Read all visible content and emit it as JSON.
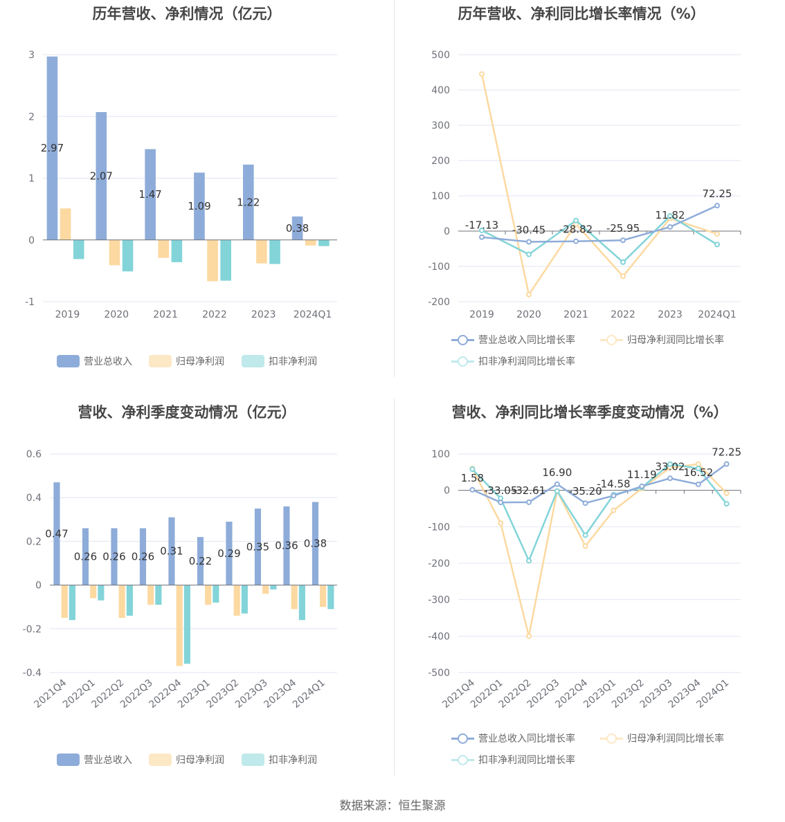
{
  "source": "数据来源：恒生聚源",
  "colors": {
    "revenue": "#8eacd9",
    "net": "#fcd9a1",
    "deducted": "#82d4d8",
    "grid": "#e0e6f1",
    "axis": "#6e7079",
    "label": "#333333"
  },
  "chart_data": [
    {
      "id": "annual-amount",
      "type": "bar",
      "title": "历年营收、净利情况（亿元）",
      "categories": [
        "2019",
        "2020",
        "2021",
        "2022",
        "2023",
        "2024Q1"
      ],
      "ylim": [
        -1,
        3
      ],
      "yticks": [
        -1,
        0,
        1,
        2,
        3
      ],
      "ytick_labels": [
        "-1",
        "0",
        "1",
        "2",
        "3"
      ],
      "series": [
        {
          "name": "营业总收入",
          "values": [
            2.97,
            2.07,
            1.47,
            1.09,
            1.22,
            0.38
          ],
          "labels": [
            "2.97",
            "2.07",
            "1.47",
            "1.09",
            "1.22",
            "0.38"
          ]
        },
        {
          "name": "归母净利润",
          "values": [
            0.51,
            -0.41,
            -0.29,
            -0.67,
            -0.38,
            -0.09
          ]
        },
        {
          "name": "扣非净利润",
          "values": [
            -0.31,
            -0.51,
            -0.36,
            -0.66,
            -0.39,
            -0.1
          ]
        }
      ]
    },
    {
      "id": "annual-growth",
      "type": "line",
      "title": "历年营收、净利同比增长率情况（%）",
      "categories": [
        "2019",
        "2020",
        "2021",
        "2022",
        "2023",
        "2024Q1"
      ],
      "ylim": [
        -200,
        500
      ],
      "yticks": [
        -200,
        -100,
        0,
        100,
        200,
        300,
        400,
        500
      ],
      "ytick_labels": [
        "-200",
        "-100",
        "0",
        "100",
        "200",
        "300",
        "400",
        "500"
      ],
      "series": [
        {
          "name": "营业总收入同比增长率",
          "values": [
            -17.13,
            -30.45,
            -28.82,
            -25.95,
            11.82,
            72.25
          ],
          "labels": [
            "-17.13",
            "-30.45",
            "-28.82",
            "-25.95",
            "11.82",
            "72.25"
          ]
        },
        {
          "name": "归母净利润同比增长率",
          "values": [
            445,
            -180,
            20,
            -128,
            36,
            -8
          ]
        },
        {
          "name": "扣非净利润同比增长率",
          "values": [
            2,
            -66,
            30,
            -88,
            43,
            -38
          ]
        }
      ]
    },
    {
      "id": "quarterly-amount",
      "type": "bar",
      "title": "营收、净利季度变动情况（亿元）",
      "categories": [
        "2021Q4",
        "2022Q1",
        "2022Q2",
        "2022Q3",
        "2022Q4",
        "2023Q1",
        "2023Q2",
        "2023Q3",
        "2023Q4",
        "2024Q1"
      ],
      "ylim": [
        -0.4,
        0.6
      ],
      "yticks": [
        -0.4,
        -0.2,
        0,
        0.2,
        0.4,
        0.6
      ],
      "ytick_labels": [
        "-0.4",
        "-0.2",
        "0",
        "0.2",
        "0.4",
        "0.6"
      ],
      "series": [
        {
          "name": "营业总收入",
          "values": [
            0.47,
            0.26,
            0.26,
            0.26,
            0.31,
            0.22,
            0.29,
            0.35,
            0.36,
            0.38
          ],
          "labels": [
            "0.47",
            "0.26",
            "0.26",
            "0.26",
            "0.31",
            "0.22",
            "0.29",
            "0.35",
            "0.36",
            "0.38"
          ]
        },
        {
          "name": "归母净利润",
          "values": [
            -0.15,
            -0.06,
            -0.15,
            -0.09,
            -0.37,
            -0.09,
            -0.14,
            -0.04,
            -0.11,
            -0.1
          ]
        },
        {
          "name": "扣非净利润",
          "values": [
            -0.16,
            -0.07,
            -0.14,
            -0.09,
            -0.36,
            -0.08,
            -0.13,
            -0.02,
            -0.16,
            -0.11
          ]
        }
      ]
    },
    {
      "id": "quarterly-growth",
      "type": "line",
      "title": "营收、净利同比增长率季度变动情况（%）",
      "categories": [
        "2021Q4",
        "2022Q1",
        "2022Q2",
        "2022Q3",
        "2022Q4",
        "2023Q1",
        "2023Q2",
        "2023Q3",
        "2023Q4",
        "2024Q1"
      ],
      "ylim": [
        -500,
        100
      ],
      "yticks": [
        -500,
        -400,
        -300,
        -200,
        -100,
        0,
        100
      ],
      "ytick_labels": [
        "-500",
        "-400",
        "-300",
        "-200",
        "-100",
        "0",
        "100"
      ],
      "series": [
        {
          "name": "营业总收入同比增长率",
          "values": [
            1.58,
            -33.05,
            -32.61,
            16.9,
            -35.2,
            -14.58,
            11.19,
            33.02,
            16.52,
            72.25
          ],
          "labels": [
            "1.58",
            "-33.05",
            "-32.61",
            "16.90",
            "-35.20",
            "-14.58",
            "11.19",
            "33.02",
            "16.52",
            "72.25"
          ]
        },
        {
          "name": "归母净利润同比增长率",
          "values": [
            60,
            -90,
            -400,
            -2,
            -153,
            -55,
            5,
            62,
            72,
            -8
          ]
        },
        {
          "name": "扣非净利润同比增长率",
          "values": [
            58,
            -22,
            -193,
            -2,
            -123,
            -12,
            8,
            72,
            60,
            -37
          ]
        }
      ]
    }
  ]
}
